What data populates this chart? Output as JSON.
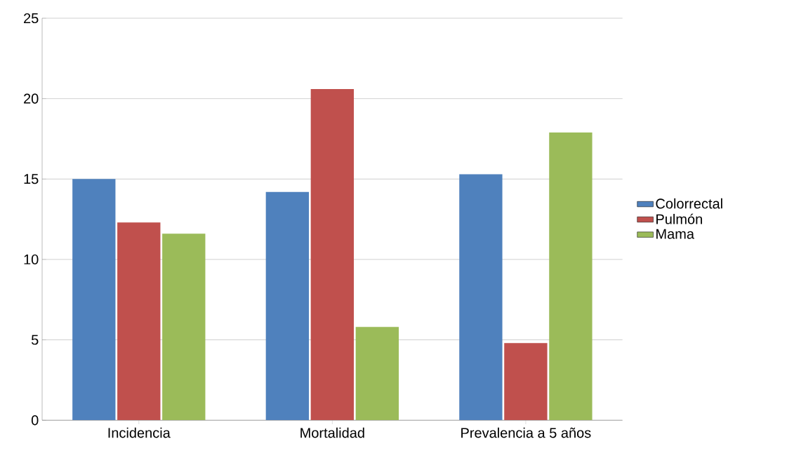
{
  "chart_data": {
    "type": "bar",
    "categories": [
      "Incidencia",
      "Mortalidad",
      "Prevalencia a 5 años"
    ],
    "series": [
      {
        "name": "Colorrectal",
        "color": "#4f81bd",
        "values": [
          15,
          14.2,
          15.3
        ]
      },
      {
        "name": "Pulmón",
        "color": "#c0504d",
        "values": [
          12.3,
          20.6,
          4.8
        ]
      },
      {
        "name": "Mama",
        "color": "#9bbb59",
        "values": [
          11.6,
          5.8,
          17.9
        ]
      }
    ],
    "ylim": [
      0,
      25
    ],
    "yticks": [
      0,
      5,
      10,
      15,
      20,
      25
    ],
    "grid": "y",
    "legend": "right"
  }
}
